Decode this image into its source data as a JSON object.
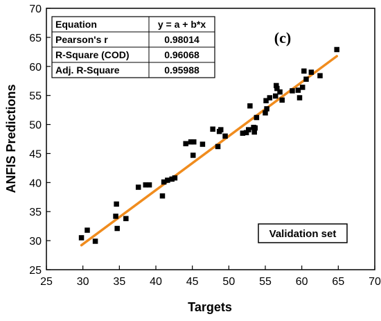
{
  "chart_data": {
    "type": "scatter",
    "xlabel": "Targets",
    "ylabel": "ANFIS Predictions",
    "xlim": [
      25,
      70
    ],
    "ylim": [
      25,
      70
    ],
    "xticks": [
      "25",
      "30",
      "35",
      "40",
      "45",
      "50",
      "55",
      "60",
      "65",
      "70"
    ],
    "yticks": [
      "25",
      "30",
      "35",
      "40",
      "45",
      "50",
      "55",
      "60",
      "65",
      "70"
    ],
    "panel_label": "(c)",
    "annotation": "Validation set",
    "fit_line": {
      "a": 1.5,
      "b": 0.93,
      "color": "#f08c1e"
    },
    "marker_color": "#000000",
    "stats_table": {
      "header": [
        "Equation",
        "y = a + b*x"
      ],
      "rows": [
        [
          "Pearson's r",
          "0.98014"
        ],
        [
          "R-Square (COD)",
          "0.96068"
        ],
        [
          "Adj. R-Square",
          "0.95988"
        ]
      ]
    },
    "points": [
      {
        "x": 29.8,
        "y": 30.5
      },
      {
        "x": 30.6,
        "y": 31.8
      },
      {
        "x": 31.7,
        "y": 29.9
      },
      {
        "x": 34.5,
        "y": 34.2
      },
      {
        "x": 34.6,
        "y": 36.3
      },
      {
        "x": 34.7,
        "y": 32.1
      },
      {
        "x": 35.9,
        "y": 33.8
      },
      {
        "x": 37.6,
        "y": 39.2
      },
      {
        "x": 38.6,
        "y": 39.6
      },
      {
        "x": 39.1,
        "y": 39.6
      },
      {
        "x": 40.9,
        "y": 37.7
      },
      {
        "x": 41.1,
        "y": 40.1
      },
      {
        "x": 41.6,
        "y": 40.4
      },
      {
        "x": 42.2,
        "y": 40.6
      },
      {
        "x": 42.6,
        "y": 40.8
      },
      {
        "x": 44.1,
        "y": 46.7
      },
      {
        "x": 44.8,
        "y": 47.0
      },
      {
        "x": 45.1,
        "y": 44.7
      },
      {
        "x": 45.2,
        "y": 47.0
      },
      {
        "x": 46.4,
        "y": 46.6
      },
      {
        "x": 47.8,
        "y": 49.2
      },
      {
        "x": 48.5,
        "y": 46.2
      },
      {
        "x": 48.7,
        "y": 48.8
      },
      {
        "x": 48.9,
        "y": 49.1
      },
      {
        "x": 49.5,
        "y": 48.0
      },
      {
        "x": 51.9,
        "y": 48.5
      },
      {
        "x": 52.4,
        "y": 48.6
      },
      {
        "x": 52.7,
        "y": 49.1
      },
      {
        "x": 52.9,
        "y": 53.2
      },
      {
        "x": 53.4,
        "y": 49.5
      },
      {
        "x": 53.5,
        "y": 48.7
      },
      {
        "x": 53.6,
        "y": 49.4
      },
      {
        "x": 53.8,
        "y": 51.2
      },
      {
        "x": 55.0,
        "y": 52.0
      },
      {
        "x": 55.1,
        "y": 54.1
      },
      {
        "x": 55.2,
        "y": 52.7
      },
      {
        "x": 55.6,
        "y": 54.6
      },
      {
        "x": 56.4,
        "y": 54.9
      },
      {
        "x": 56.5,
        "y": 56.7
      },
      {
        "x": 56.6,
        "y": 56.2
      },
      {
        "x": 57.0,
        "y": 55.6
      },
      {
        "x": 57.3,
        "y": 54.2
      },
      {
        "x": 58.7,
        "y": 55.8
      },
      {
        "x": 59.5,
        "y": 55.9
      },
      {
        "x": 59.7,
        "y": 54.6
      },
      {
        "x": 60.1,
        "y": 56.4
      },
      {
        "x": 60.3,
        "y": 59.2
      },
      {
        "x": 60.6,
        "y": 57.8
      },
      {
        "x": 61.3,
        "y": 59.0
      },
      {
        "x": 62.5,
        "y": 58.4
      },
      {
        "x": 64.8,
        "y": 62.9
      }
    ]
  }
}
